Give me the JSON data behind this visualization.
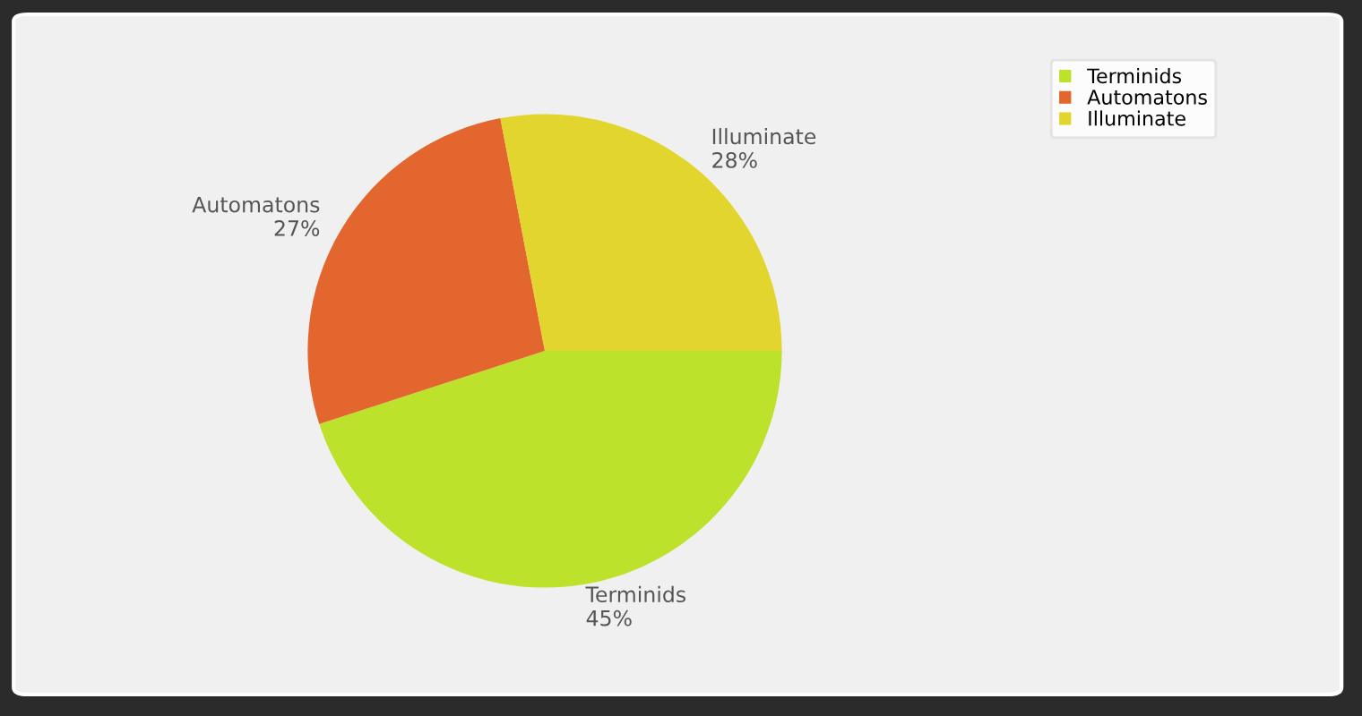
{
  "chart_data": {
    "type": "pie",
    "categories": [
      "Terminids",
      "Automatons",
      "Illuminate"
    ],
    "values": [
      45,
      27,
      28
    ],
    "value_labels": [
      "45%",
      "27%",
      "28%"
    ],
    "colors": [
      "#bde22b",
      "#e2662e",
      "#e2d62e"
    ],
    "legend": "top right"
  }
}
